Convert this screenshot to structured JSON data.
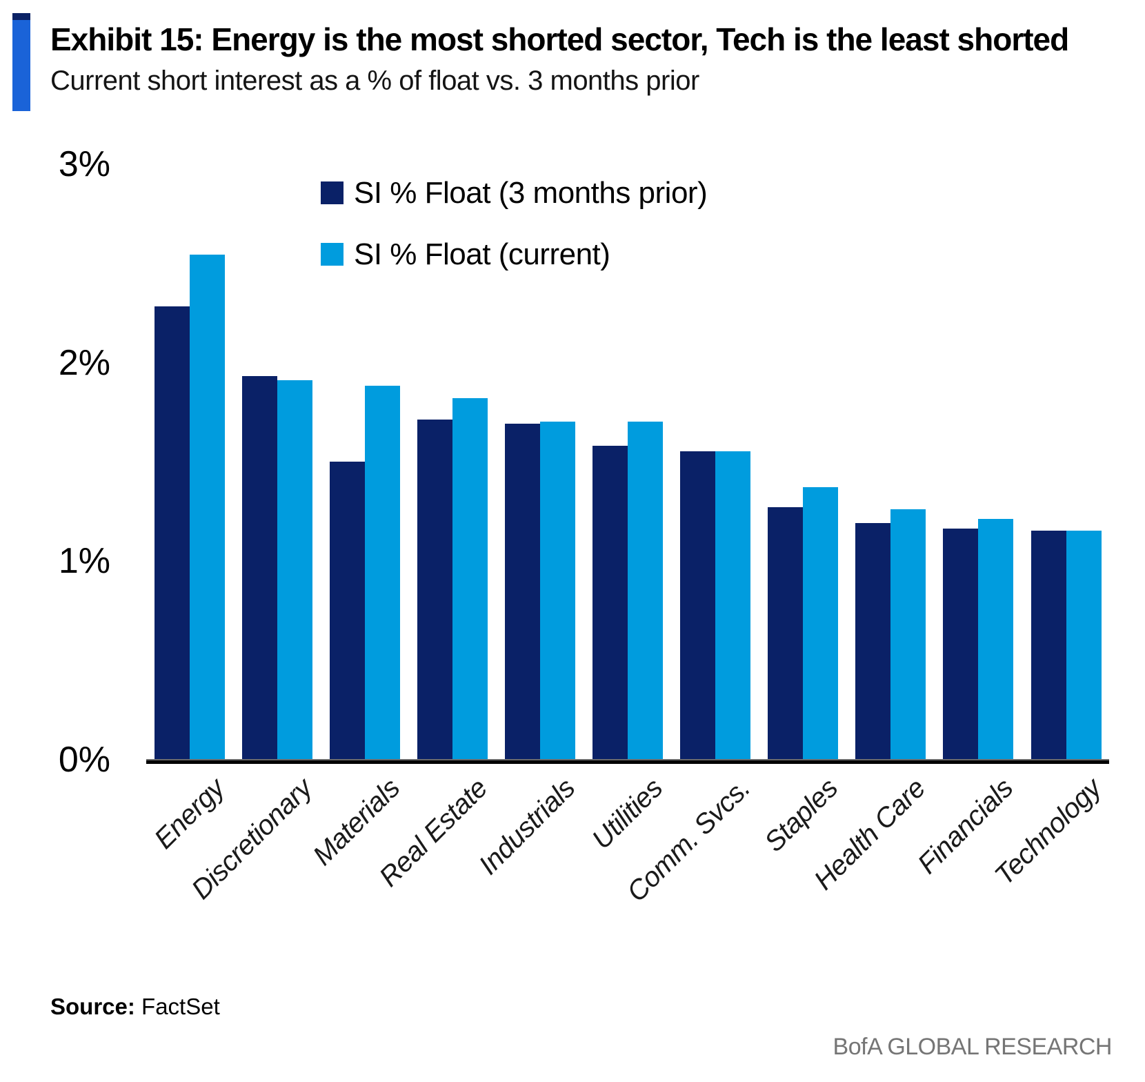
{
  "header": {
    "title": "Exhibit 15: Energy is the most shorted sector, Tech is the least shorted",
    "subtitle": "Current short interest as a % of float vs. 3 months prior"
  },
  "footer": {
    "source_label": "Source:",
    "source_value": "FactSet",
    "branding": "BofA GLOBAL RESEARCH"
  },
  "colors": {
    "navy": "#0A2167",
    "light_blue": "#009CDE",
    "accent_bar_blue": "#1A63D8",
    "accent_bar_navy": "#0B2265",
    "branding_gray": "#757575"
  },
  "chart_data": {
    "type": "bar",
    "title": "Exhibit 15: Energy is the most shorted sector, Tech is the least shorted",
    "subtitle": "Current short interest as a % of float vs. 3 months prior",
    "categories": [
      "Energy",
      "Discretionary",
      "Materials",
      "Real Estate",
      "Industrials",
      "Utilities",
      "Comm. Svcs.",
      "Staples",
      "Health Care",
      "Financials",
      "Technology"
    ],
    "series": [
      {
        "name": "SI % Float (3 months prior)",
        "color_key": "navy",
        "values": [
          2.29,
          1.94,
          1.51,
          1.72,
          1.7,
          1.59,
          1.56,
          1.28,
          1.2,
          1.17,
          1.16
        ]
      },
      {
        "name": "SI % Float (current)",
        "color_key": "light_blue",
        "values": [
          2.55,
          1.92,
          1.89,
          1.83,
          1.71,
          1.71,
          1.56,
          1.38,
          1.27,
          1.22,
          1.16
        ]
      }
    ],
    "xlabel": "",
    "ylabel": "",
    "ylim": [
      0,
      3
    ],
    "yticks": [
      {
        "value": 0,
        "label": "0%"
      },
      {
        "value": 1,
        "label": "1%"
      },
      {
        "value": 2,
        "label": "2%"
      },
      {
        "value": 3,
        "label": "3%"
      }
    ],
    "grid": false,
    "legend_position": "upper-center"
  }
}
